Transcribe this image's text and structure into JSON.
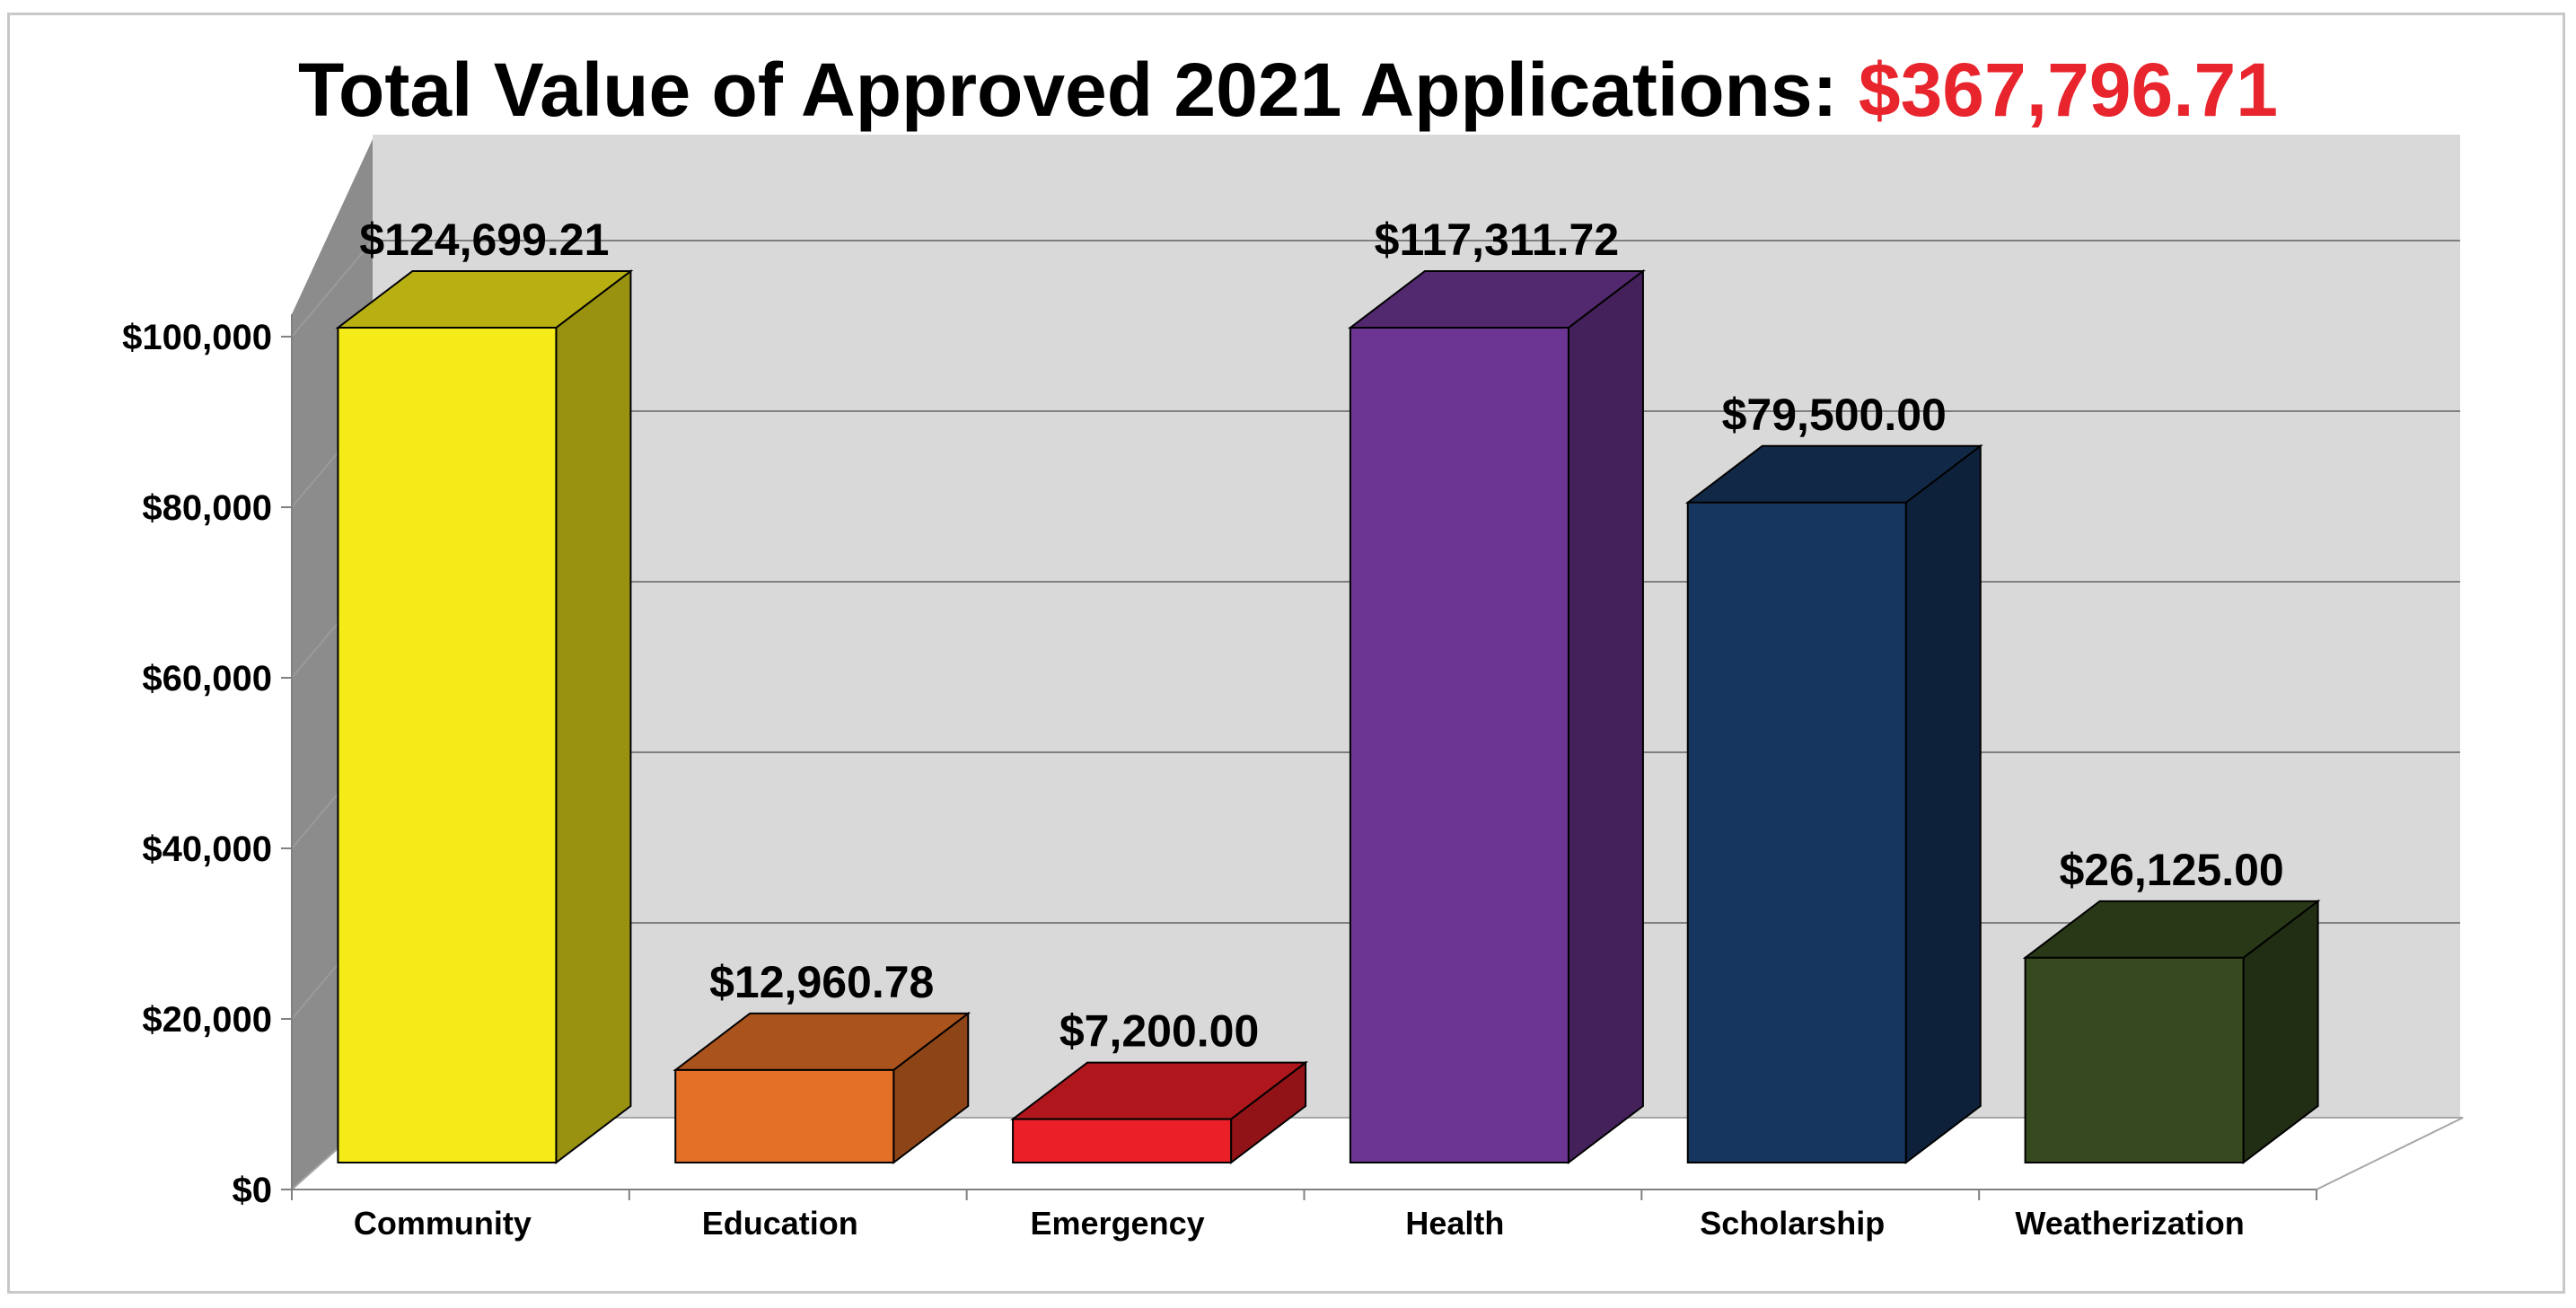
{
  "title": {
    "text": "Total Value of Approved 2021 Applications: ",
    "total": "$367,796.71"
  },
  "chart_data": {
    "type": "bar",
    "title": "Total Value of Approved 2021 Applications: $367,796.71",
    "xlabel": "",
    "ylabel": "",
    "ylim": [
      0,
      100000
    ],
    "y_ticks": [
      {
        "value": 0,
        "label": "$0"
      },
      {
        "value": 20000,
        "label": "$20,000"
      },
      {
        "value": 40000,
        "label": "$40,000"
      },
      {
        "value": 60000,
        "label": "$60,000"
      },
      {
        "value": 80000,
        "label": "$80,000"
      },
      {
        "value": 100000,
        "label": "$100,000"
      }
    ],
    "grid": true,
    "three_d": true,
    "categories": [
      "Community",
      "Education",
      "Emergency",
      "Health",
      "Scholarship",
      "Weatherization"
    ],
    "values": [
      124699.21,
      12960.78,
      7200.0,
      117311.72,
      79500.0,
      26125.0
    ],
    "data_labels": [
      "$124,699.21",
      "$12,960.78",
      "$7,200.00",
      "$117,311.72",
      "$79,500.00",
      "$26,125.00"
    ],
    "colors": [
      "#f5eb19",
      "#e46f26",
      "#ea1f27",
      "#6d3593",
      "#17365f",
      "#374a1f"
    ]
  }
}
